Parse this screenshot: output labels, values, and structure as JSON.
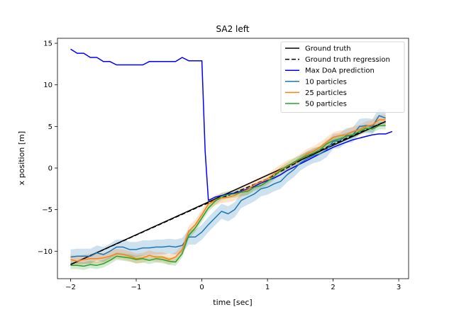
{
  "chart_data": {
    "type": "line",
    "title": "SA2 left",
    "xlabel": "time [sec]",
    "ylabel": "x position [m]",
    "xlim": [
      -2.2,
      3.15
    ],
    "ylim": [
      -13.3,
      15.6
    ],
    "xticks": [
      -2,
      -1,
      0,
      1,
      2,
      3
    ],
    "yticks": [
      -10,
      -5,
      0,
      5,
      10,
      15
    ],
    "grid": false,
    "legend_position": "top-right",
    "series": [
      {
        "name": "Ground truth",
        "color": "#000000",
        "style": "solid",
        "x": [
          -2.0,
          2.8
        ],
        "y": [
          -11.6,
          5.6
        ]
      },
      {
        "name": "Ground truth regression",
        "color": "#000000",
        "style": "dashed",
        "x": [
          -2.0,
          0.0,
          0.4,
          1.0,
          1.5,
          2.0,
          2.8
        ],
        "y": [
          -11.6,
          -4.5,
          -3.3,
          -1.3,
          0.9,
          2.9,
          5.6
        ]
      },
      {
        "name": "Max DoA prediction",
        "color": "#0000ff",
        "style": "solid",
        "x": [
          -2.0,
          -1.9,
          -1.8,
          -1.7,
          -1.6,
          -1.5,
          -1.4,
          -1.3,
          -1.2,
          -1.1,
          -1.0,
          -0.9,
          -0.8,
          -0.7,
          -0.6,
          -0.5,
          -0.4,
          -0.3,
          -0.2,
          -0.1,
          0.0,
          0.05,
          0.1,
          0.15,
          0.2,
          0.3,
          0.4,
          0.5,
          0.6,
          0.7,
          0.8,
          0.9,
          1.0,
          1.1,
          1.2,
          1.3,
          1.4,
          1.5,
          1.6,
          1.7,
          1.8,
          1.9,
          2.0,
          2.1,
          2.2,
          2.3,
          2.4,
          2.5,
          2.6,
          2.7,
          2.8,
          2.9
        ],
        "y": [
          14.3,
          13.8,
          13.8,
          13.3,
          13.3,
          12.8,
          12.8,
          12.4,
          12.4,
          12.4,
          12.4,
          12.4,
          12.8,
          12.8,
          12.8,
          12.8,
          12.8,
          13.3,
          12.9,
          12.9,
          12.9,
          2.0,
          -3.9,
          -3.7,
          -3.5,
          -3.3,
          -3.1,
          -3.0,
          -2.8,
          -2.5,
          -2.2,
          -1.8,
          -1.5,
          -1.2,
          -0.8,
          -0.3,
          0.1,
          0.5,
          0.9,
          1.3,
          1.7,
          2.1,
          2.5,
          2.8,
          3.1,
          3.4,
          3.6,
          3.8,
          4.0,
          4.1,
          4.1,
          4.4
        ]
      },
      {
        "name": "10 particles",
        "color": "#1f77b4",
        "style": "solid",
        "x": [
          -2.0,
          -1.9,
          -1.8,
          -1.7,
          -1.6,
          -1.5,
          -1.4,
          -1.3,
          -1.2,
          -1.1,
          -1.0,
          -0.9,
          -0.8,
          -0.7,
          -0.6,
          -0.5,
          -0.4,
          -0.3,
          -0.2,
          -0.1,
          0.0,
          0.1,
          0.2,
          0.3,
          0.4,
          0.5,
          0.6,
          0.7,
          0.8,
          0.9,
          1.0,
          1.1,
          1.2,
          1.3,
          1.4,
          1.5,
          1.6,
          1.7,
          1.8,
          1.9,
          2.0,
          2.1,
          2.2,
          2.3,
          2.4,
          2.5,
          2.6,
          2.7,
          2.8
        ],
        "y": [
          -10.7,
          -10.6,
          -10.6,
          -10.6,
          -10.2,
          -10.4,
          -10.0,
          -9.5,
          -9.5,
          -9.8,
          -9.8,
          -9.6,
          -9.6,
          -9.5,
          -9.5,
          -9.4,
          -9.5,
          -9.3,
          -8.3,
          -8.3,
          -7.7,
          -6.8,
          -6.0,
          -5.2,
          -5.5,
          -5.0,
          -3.9,
          -3.5,
          -3.1,
          -2.5,
          -2.3,
          -1.9,
          -1.6,
          -0.8,
          -0.2,
          0.6,
          1.1,
          1.5,
          1.7,
          2.2,
          3.2,
          3.3,
          3.9,
          4.0,
          5.0,
          5.1,
          5.0,
          6.3,
          6.0
        ]
      },
      {
        "name": "25 particles",
        "color": "#ff7f0e",
        "style": "solid",
        "x": [
          -2.0,
          -1.9,
          -1.8,
          -1.7,
          -1.6,
          -1.5,
          -1.4,
          -1.3,
          -1.2,
          -1.1,
          -1.0,
          -0.9,
          -0.8,
          -0.7,
          -0.6,
          -0.5,
          -0.4,
          -0.3,
          -0.2,
          -0.1,
          0.0,
          0.1,
          0.2,
          0.3,
          0.4,
          0.5,
          0.6,
          0.7,
          0.8,
          0.9,
          1.0,
          1.1,
          1.2,
          1.3,
          1.4,
          1.5,
          1.6,
          1.7,
          1.8,
          1.9,
          2.0,
          2.1,
          2.2,
          2.3,
          2.4,
          2.5,
          2.6,
          2.7,
          2.8
        ],
        "y": [
          -11.0,
          -11.2,
          -11.0,
          -10.9,
          -10.9,
          -10.8,
          -10.6,
          -10.3,
          -10.4,
          -10.6,
          -10.9,
          -10.8,
          -10.5,
          -10.7,
          -10.7,
          -11.0,
          -10.7,
          -9.8,
          -7.6,
          -6.8,
          -5.6,
          -4.3,
          -3.9,
          -3.6,
          -3.5,
          -3.3,
          -2.9,
          -2.6,
          -2.0,
          -1.7,
          -1.3,
          -0.7,
          -0.2,
          0.3,
          0.6,
          1.1,
          1.7,
          2.0,
          2.5,
          3.1,
          3.7,
          3.9,
          4.0,
          4.4,
          4.6,
          5.0,
          5.2,
          5.8,
          5.8
        ]
      },
      {
        "name": "50 particles",
        "color": "#2ca02c",
        "style": "solid",
        "x": [
          -2.0,
          -1.9,
          -1.8,
          -1.7,
          -1.6,
          -1.5,
          -1.4,
          -1.3,
          -1.2,
          -1.1,
          -1.0,
          -0.9,
          -0.8,
          -0.7,
          -0.6,
          -0.5,
          -0.4,
          -0.3,
          -0.2,
          -0.1,
          0.0,
          0.1,
          0.2,
          0.3,
          0.4,
          0.5,
          0.6,
          0.7,
          0.8,
          0.9,
          1.0,
          1.1,
          1.2,
          1.3,
          1.4,
          1.5,
          1.6,
          1.7,
          1.8,
          1.9,
          2.0,
          2.1,
          2.2,
          2.3,
          2.4,
          2.5,
          2.6,
          2.7,
          2.8
        ],
        "y": [
          -11.7,
          -11.7,
          -11.8,
          -11.6,
          -11.7,
          -11.5,
          -11.1,
          -10.6,
          -10.7,
          -10.8,
          -11.0,
          -10.9,
          -11.1,
          -10.9,
          -11.0,
          -11.2,
          -11.3,
          -10.3,
          -8.1,
          -7.2,
          -6.0,
          -4.8,
          -4.0,
          -3.4,
          -3.2,
          -3.1,
          -2.9,
          -2.8,
          -2.3,
          -2.1,
          -1.6,
          -1.0,
          -0.3,
          0.2,
          0.7,
          1.1,
          1.5,
          1.8,
          2.2,
          2.9,
          3.3,
          3.5,
          3.8,
          4.0,
          4.4,
          4.8,
          4.7,
          5.1,
          5.1
        ]
      }
    ]
  }
}
